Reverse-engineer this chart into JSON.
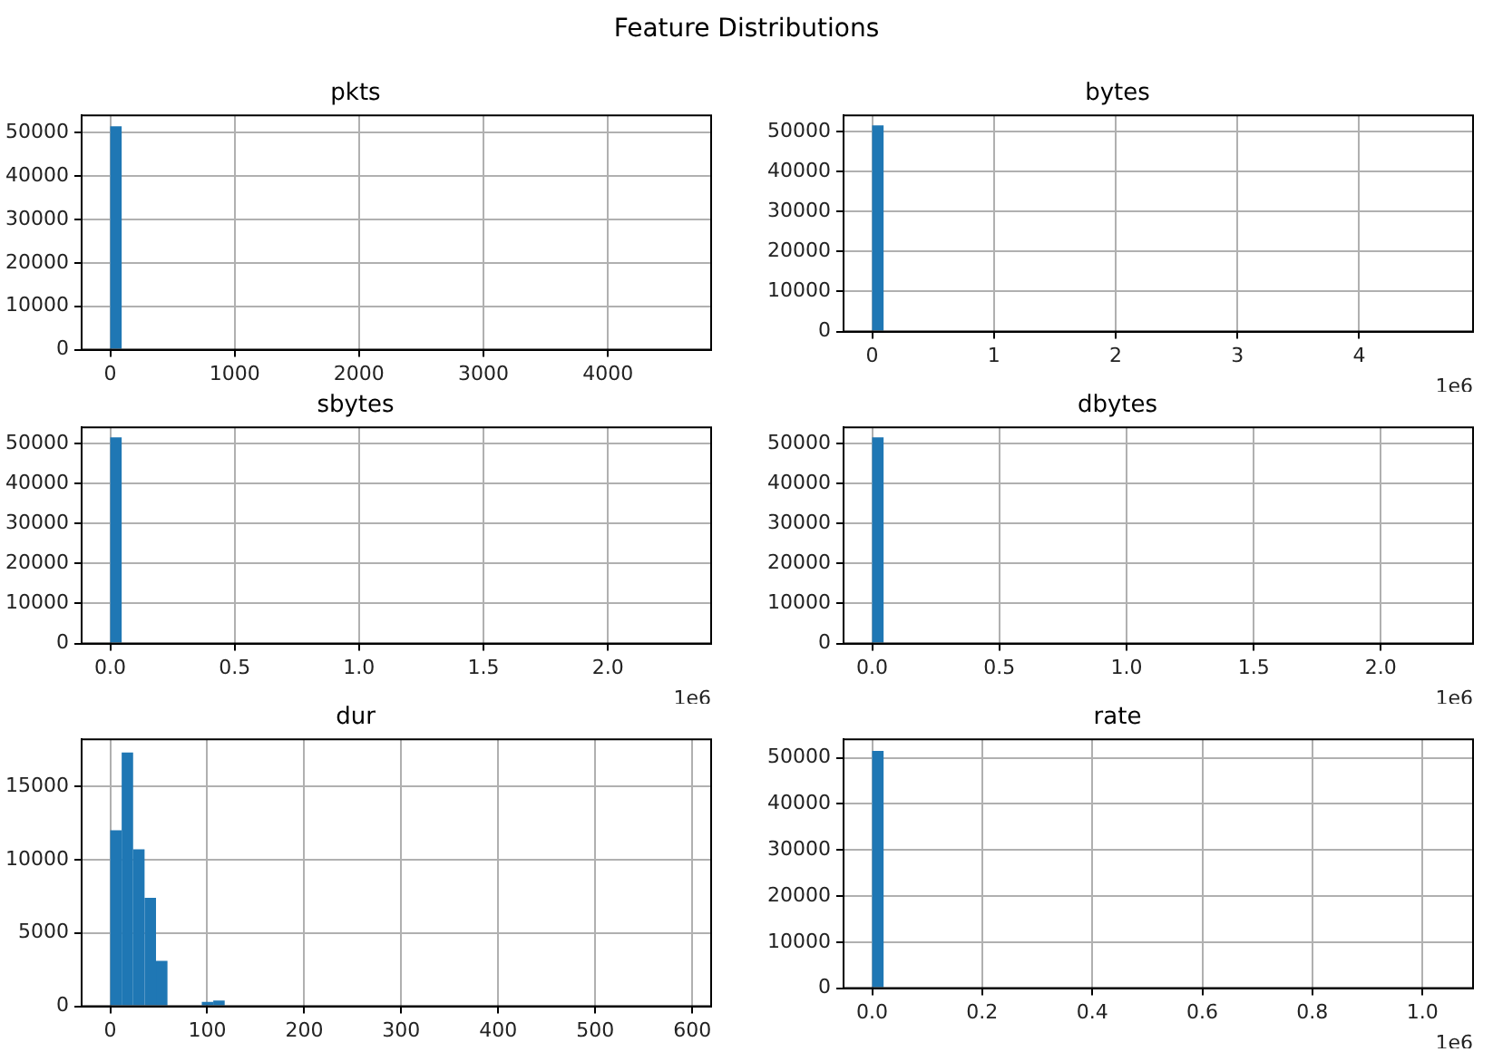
{
  "chart_data": [
    {
      "type": "other",
      "title": "Feature Distributions"
    },
    {
      "type": "histogram",
      "title": "pkts",
      "bins": [
        0,
        92
      ],
      "values": [
        51500
      ],
      "color": "#1f77b4",
      "xlim": [
        -230,
        4830
      ],
      "xticks": [
        0,
        1000,
        2000,
        3000,
        4000
      ],
      "ylim": [
        0,
        54000
      ],
      "yticks": [
        0,
        10000,
        20000,
        30000,
        40000,
        50000
      ],
      "grid": true
    },
    {
      "type": "histogram",
      "title": "bytes",
      "bins": [
        0,
        0.094
      ],
      "values": [
        51500
      ],
      "color": "#1f77b4",
      "xlim": [
        -0.235,
        4.935
      ],
      "xticks": [
        0,
        1,
        2,
        3,
        4
      ],
      "ylim": [
        0,
        54000
      ],
      "yticks": [
        0,
        10000,
        20000,
        30000,
        40000,
        50000
      ],
      "grid": true,
      "annotations": [
        "1e6"
      ]
    },
    {
      "type": "histogram",
      "title": "sbytes",
      "bins": [
        0,
        0.046
      ],
      "values": [
        51500
      ],
      "color": "#1f77b4",
      "xlim": [
        -0.115,
        2.415
      ],
      "xticks": [
        {
          "value": 0,
          "label": "0.0"
        },
        0.5,
        {
          "value": 1,
          "label": "1.0"
        },
        1.5,
        {
          "value": 2,
          "label": "2.0"
        }
      ],
      "ylim": [
        0,
        54000
      ],
      "yticks": [
        0,
        10000,
        20000,
        30000,
        40000,
        50000
      ],
      "grid": true,
      "annotations": [
        "1e6"
      ]
    },
    {
      "type": "histogram",
      "title": "dbytes",
      "bins": [
        0,
        0.045
      ],
      "values": [
        51500
      ],
      "color": "#1f77b4",
      "xlim": [
        -0.1125,
        2.3625
      ],
      "xticks": [
        {
          "value": 0,
          "label": "0.0"
        },
        0.5,
        {
          "value": 1,
          "label": "1.0"
        },
        1.5,
        {
          "value": 2,
          "label": "2.0"
        }
      ],
      "ylim": [
        0,
        54000
      ],
      "yticks": [
        0,
        10000,
        20000,
        30000,
        40000,
        50000
      ],
      "grid": true,
      "annotations": [
        "1e6"
      ]
    },
    {
      "type": "histogram",
      "title": "dur",
      "bins": [
        0,
        11.8,
        23.6,
        35.4,
        47.2,
        59,
        94.4,
        106.2,
        118
      ],
      "values": [
        12000,
        17300,
        10700,
        7400,
        3100,
        0,
        300,
        400
      ],
      "color": "#1f77b4",
      "xlim": [
        -29.5,
        619.5
      ],
      "xticks": [
        0,
        100,
        200,
        300,
        400,
        500,
        600
      ],
      "ylim": [
        0,
        18200
      ],
      "yticks": [
        0,
        5000,
        10000,
        15000
      ],
      "grid": true
    },
    {
      "type": "histogram",
      "title": "rate",
      "bins": [
        0,
        0.0208
      ],
      "values": [
        51500
      ],
      "color": "#1f77b4",
      "xlim": [
        -0.052,
        1.092
      ],
      "xticks": [
        {
          "value": 0,
          "label": "0.0"
        },
        0.2,
        0.4,
        0.6,
        0.8,
        {
          "value": 1,
          "label": "1.0"
        }
      ],
      "ylim": [
        0,
        54000
      ],
      "yticks": [
        0,
        10000,
        20000,
        30000,
        40000,
        50000
      ],
      "grid": true,
      "annotations": [
        "1e6"
      ]
    }
  ]
}
